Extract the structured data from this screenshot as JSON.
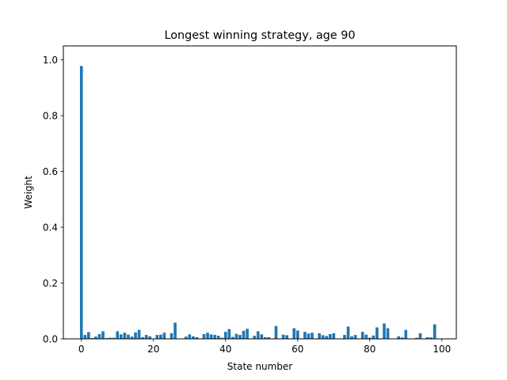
{
  "chart_data": {
    "type": "bar",
    "title": "Longest winning strategy, age 90",
    "xlabel": "State number",
    "ylabel": "Weight",
    "xlim": [
      -5,
      104
    ],
    "ylim": [
      0,
      1.05
    ],
    "xticks": [
      0,
      20,
      40,
      60,
      80,
      100
    ],
    "yticks": [
      0.0,
      0.2,
      0.4,
      0.6,
      0.8,
      1.0
    ],
    "xtick_labels": [
      "0",
      "20",
      "40",
      "60",
      "80",
      "100"
    ],
    "ytick_labels": [
      "0.0",
      "0.2",
      "0.4",
      "0.6",
      "0.8",
      "1.0"
    ],
    "bar_color": "#1f77b4",
    "grid": false,
    "x": [
      0,
      1,
      2,
      3,
      4,
      5,
      6,
      7,
      8,
      9,
      10,
      11,
      12,
      13,
      14,
      15,
      16,
      17,
      18,
      19,
      20,
      21,
      22,
      23,
      24,
      25,
      26,
      27,
      28,
      29,
      30,
      31,
      32,
      33,
      34,
      35,
      36,
      37,
      38,
      39,
      40,
      41,
      42,
      43,
      44,
      45,
      46,
      47,
      48,
      49,
      50,
      51,
      52,
      53,
      54,
      55,
      56,
      57,
      58,
      59,
      60,
      61,
      62,
      63,
      64,
      65,
      66,
      67,
      68,
      69,
      70,
      71,
      72,
      73,
      74,
      75,
      76,
      77,
      78,
      79,
      80,
      81,
      82,
      83,
      84,
      85,
      86,
      87,
      88,
      89,
      90,
      91,
      92,
      93,
      94,
      95,
      96,
      97,
      98,
      99
    ],
    "values": [
      0.978,
      0.014,
      0.024,
      0.003,
      0.008,
      0.017,
      0.027,
      0.003,
      0.004,
      0.004,
      0.027,
      0.016,
      0.022,
      0.015,
      0.008,
      0.023,
      0.032,
      0.006,
      0.014,
      0.009,
      0.0,
      0.014,
      0.015,
      0.022,
      0.0,
      0.02,
      0.058,
      0.0,
      0.0,
      0.008,
      0.016,
      0.009,
      0.006,
      0.0,
      0.017,
      0.022,
      0.016,
      0.014,
      0.011,
      0.004,
      0.025,
      0.035,
      0.007,
      0.018,
      0.014,
      0.029,
      0.036,
      0.0,
      0.011,
      0.027,
      0.016,
      0.006,
      0.006,
      0.0,
      0.046,
      0.0,
      0.015,
      0.013,
      0.0,
      0.038,
      0.03,
      0.0,
      0.025,
      0.019,
      0.022,
      0.0,
      0.02,
      0.013,
      0.01,
      0.017,
      0.02,
      0.0,
      0.0,
      0.014,
      0.044,
      0.009,
      0.014,
      0.0,
      0.025,
      0.015,
      0.004,
      0.012,
      0.041,
      0.0,
      0.055,
      0.038,
      0.0,
      0.0,
      0.009,
      0.005,
      0.032,
      0.0,
      0.0,
      0.004,
      0.02,
      0.0,
      0.006,
      0.005,
      0.052,
      0.0
    ]
  }
}
